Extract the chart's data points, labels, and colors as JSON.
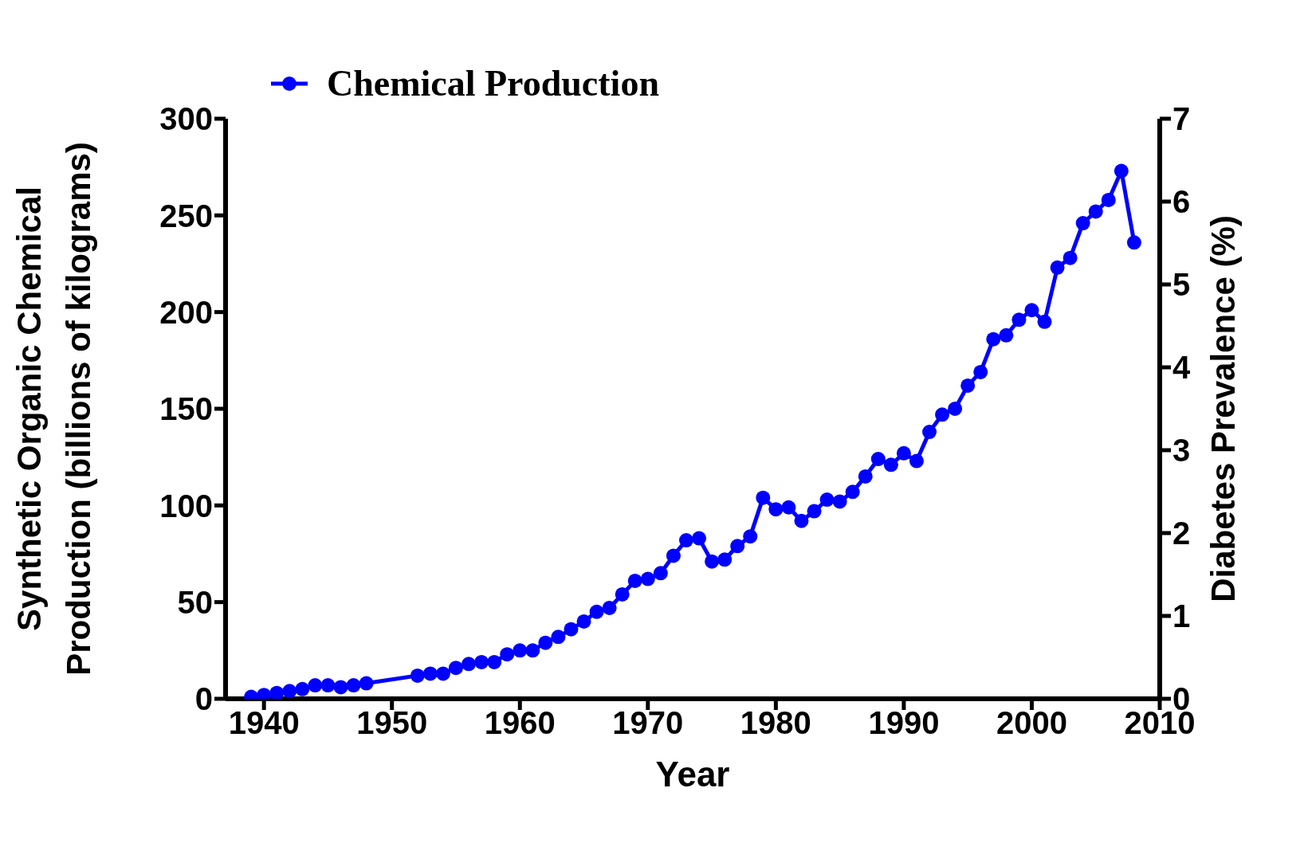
{
  "chart_data": {
    "type": "line",
    "xlabel": "Year",
    "ylabel": "Synthetic Organic Chemical\nProduction (billions of kilograms)",
    "y2label": "Diabetes Prevalence (%)",
    "x": [
      1939,
      1940,
      1941,
      1942,
      1943,
      1944,
      1945,
      1946,
      1947,
      1948,
      1952,
      1953,
      1954,
      1955,
      1956,
      1957,
      1958,
      1959,
      1960,
      1961,
      1962,
      1963,
      1964,
      1965,
      1966,
      1967,
      1968,
      1969,
      1970,
      1971,
      1972,
      1973,
      1974,
      1975,
      1976,
      1977,
      1978,
      1979,
      1980,
      1981,
      1982,
      1983,
      1984,
      1985,
      1986,
      1987,
      1988,
      1989,
      1990,
      1991,
      1992,
      1993,
      1994,
      1995,
      1996,
      1997,
      1998,
      1999,
      2000,
      2001,
      2002,
      2003,
      2004,
      2005,
      2006,
      2007,
      2008
    ],
    "series": [
      {
        "name": "Chemical Production",
        "color": "#0000ff",
        "values": [
          1,
          2,
          3,
          4,
          5,
          7,
          7,
          6,
          7,
          8,
          12,
          13,
          13,
          16,
          18,
          19,
          19,
          23,
          25,
          25,
          29,
          32,
          36,
          40,
          45,
          47,
          54,
          61,
          62,
          65,
          74,
          82,
          83,
          71,
          72,
          79,
          84,
          104,
          98,
          99,
          92,
          97,
          103,
          102,
          107,
          115,
          124,
          121,
          127,
          123,
          138,
          147,
          150,
          162,
          169,
          186,
          188,
          196,
          201,
          195,
          223,
          228,
          246,
          252,
          258,
          273,
          236
        ]
      }
    ],
    "xlim": [
      1937,
      2010
    ],
    "xticks": [
      1940,
      1950,
      1960,
      1970,
      1980,
      1990,
      2000,
      2010
    ],
    "ylim": [
      0,
      300
    ],
    "yticks": [
      0,
      50,
      100,
      150,
      200,
      250,
      300
    ],
    "y2lim": [
      0,
      7
    ],
    "y2ticks": [
      0,
      1,
      2,
      3,
      4,
      5,
      6,
      7
    ],
    "legend": "top left",
    "marker": "circle",
    "line_style": "solid",
    "grid": false
  }
}
